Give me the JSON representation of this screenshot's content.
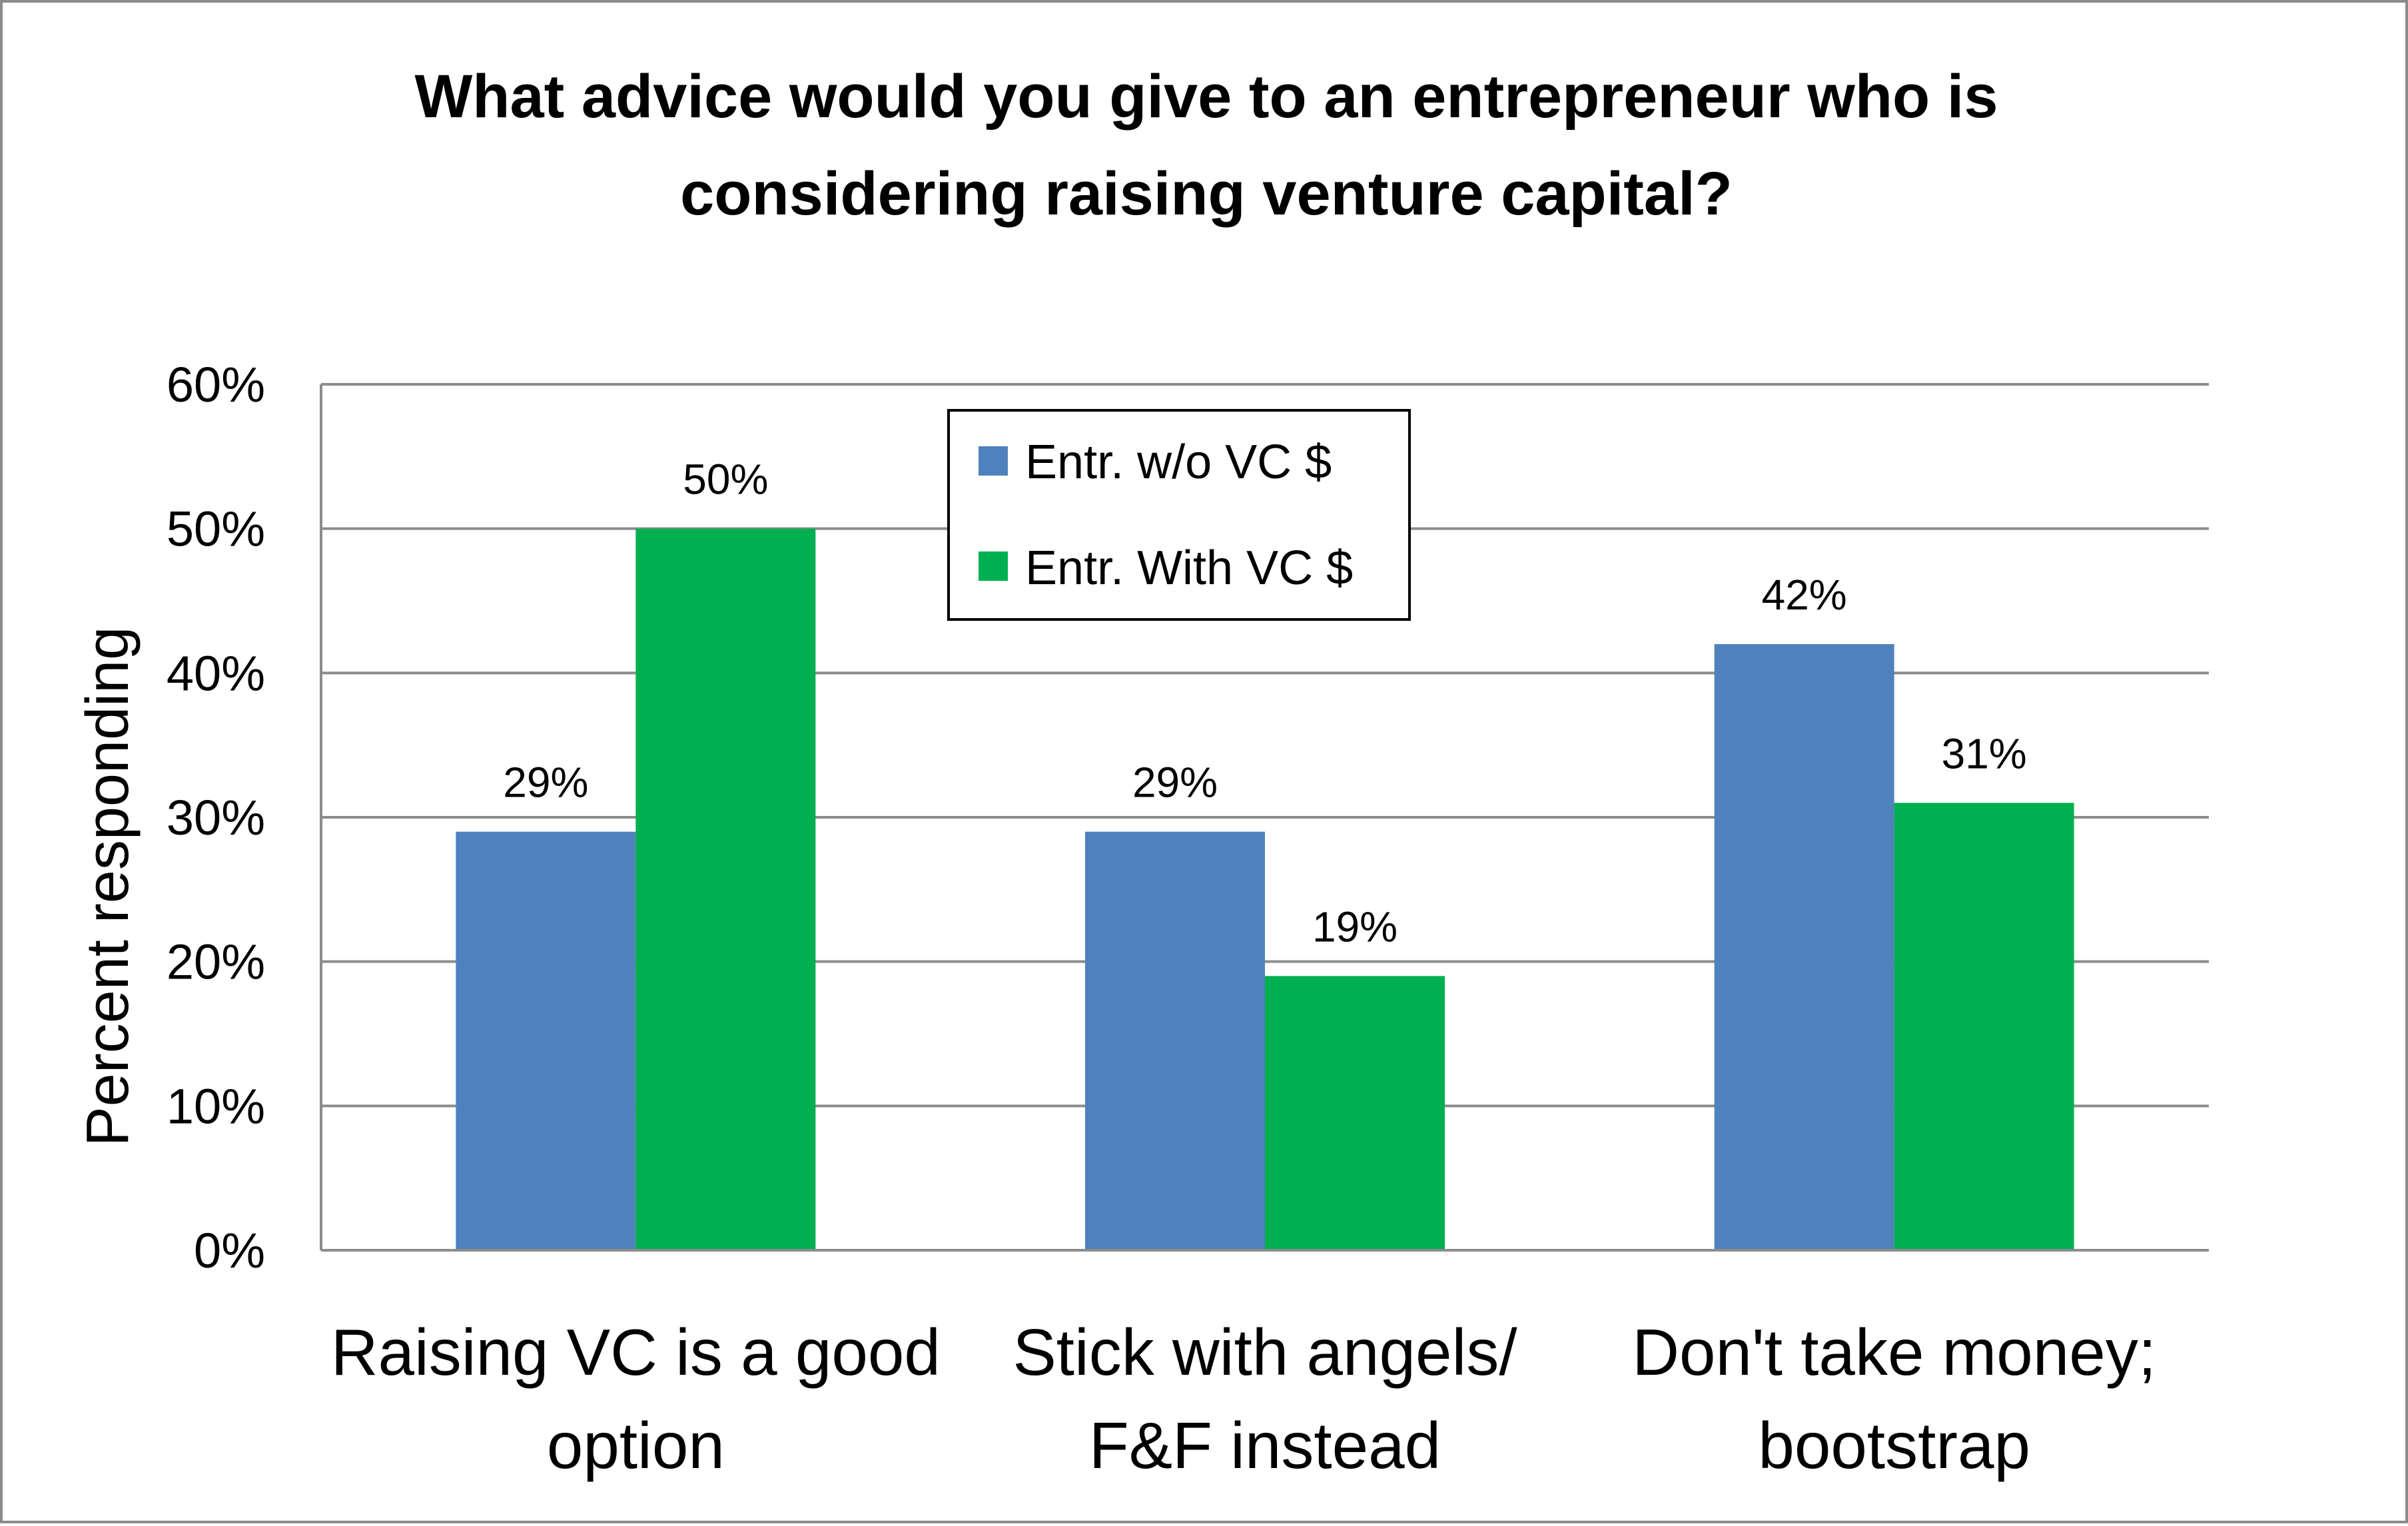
{
  "chart_data": {
    "type": "bar",
    "title": "What advice would you give to an entrepreneur who is considering raising venture capital?",
    "title_lines": [
      "What advice would you give to an entrepreneur who is",
      "considering raising venture capital?"
    ],
    "xlabel": "",
    "ylabel": "Percent responding",
    "ylim": [
      0,
      60
    ],
    "yticks": [
      "0%",
      "10%",
      "20%",
      "30%",
      "40%",
      "50%",
      "60%"
    ],
    "grid": true,
    "legend_position": "top-center",
    "categories": [
      "Raising VC is a good option",
      "Stick with angels/ F&F instead",
      "Don't take money; bootstrap"
    ],
    "category_lines": [
      [
        "Raising VC is a good",
        "option"
      ],
      [
        "Stick with angels/",
        "F&F instead"
      ],
      [
        "Don't take money;",
        "bootstrap"
      ]
    ],
    "series": [
      {
        "name": "Entr. w/o VC $",
        "color": "#4f81bd",
        "values": [
          29,
          29,
          42
        ],
        "labels": [
          "29%",
          "29%",
          "42%"
        ]
      },
      {
        "name": "Entr. With VC $",
        "color": "#00b050",
        "values": [
          50,
          19,
          31
        ],
        "labels": [
          "50%",
          "19%",
          "31%"
        ]
      }
    ]
  }
}
